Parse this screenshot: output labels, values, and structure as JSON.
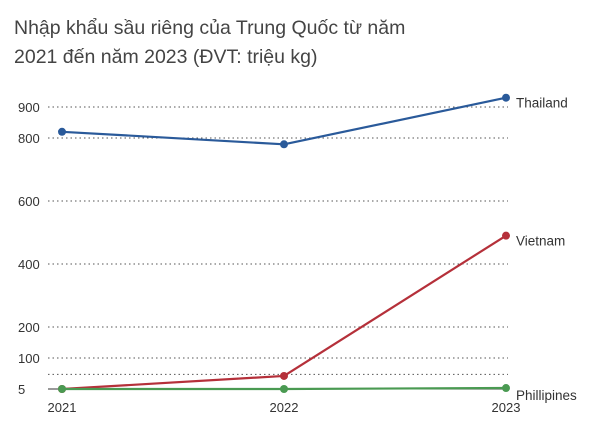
{
  "title_line1": "Nhập khẩu sầu riêng của Trung Quốc từ năm",
  "title_line2": "2021 đến năm 2023 (ĐVT: triệu kg)",
  "chart_data": {
    "type": "line",
    "title": "Nhập khẩu sầu riêng của Trung Quốc từ năm 2021 đến năm 2023 (ĐVT: triệu kg)",
    "xlabel": "",
    "ylabel": "",
    "x": [
      "2021",
      "2022",
      "2023"
    ],
    "y_ticks": [
      5,
      100,
      200,
      400,
      600,
      800,
      900
    ],
    "grid": true,
    "legend": "direct-labels-right",
    "series": [
      {
        "name": "Thailand",
        "color": "#2a5a9a",
        "values": [
          820,
          780,
          930
        ]
      },
      {
        "name": "Vietnam",
        "color": "#b5303a",
        "values": [
          5,
          45,
          490
        ]
      },
      {
        "name": "Phillipines",
        "color": "#4a9a52",
        "values": [
          5,
          5,
          8
        ]
      }
    ]
  }
}
